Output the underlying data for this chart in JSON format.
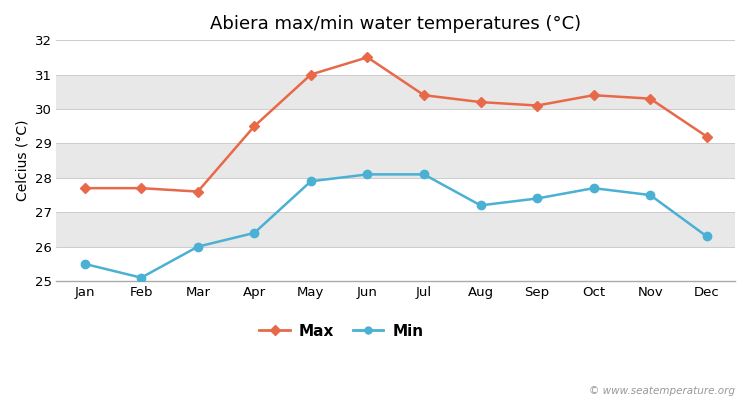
{
  "months": [
    "Jan",
    "Feb",
    "Mar",
    "Apr",
    "May",
    "Jun",
    "Jul",
    "Aug",
    "Sep",
    "Oct",
    "Nov",
    "Dec"
  ],
  "max_temps": [
    27.7,
    27.7,
    27.6,
    29.5,
    31.0,
    31.5,
    30.4,
    30.2,
    30.1,
    30.4,
    30.3,
    29.2
  ],
  "min_temps": [
    25.5,
    25.1,
    26.0,
    26.4,
    27.9,
    28.1,
    28.1,
    27.2,
    27.4,
    27.7,
    27.5,
    26.3
  ],
  "max_color": "#e8694a",
  "min_color": "#4ab0d4",
  "title": "Abiera max/min water temperatures (°C)",
  "ylabel": "Celcius (°C)",
  "ylim": [
    25.0,
    32.0
  ],
  "yticks": [
    25,
    26,
    27,
    28,
    29,
    30,
    31,
    32
  ],
  "white_bg": "#ffffff",
  "light_gray_bg": "#e8e8e8",
  "grid_color": "#d0d0d0",
  "legend_max": "Max",
  "legend_min": "Min",
  "watermark": "© www.seatemperature.org",
  "title_fontsize": 13,
  "label_fontsize": 10,
  "tick_fontsize": 9.5
}
